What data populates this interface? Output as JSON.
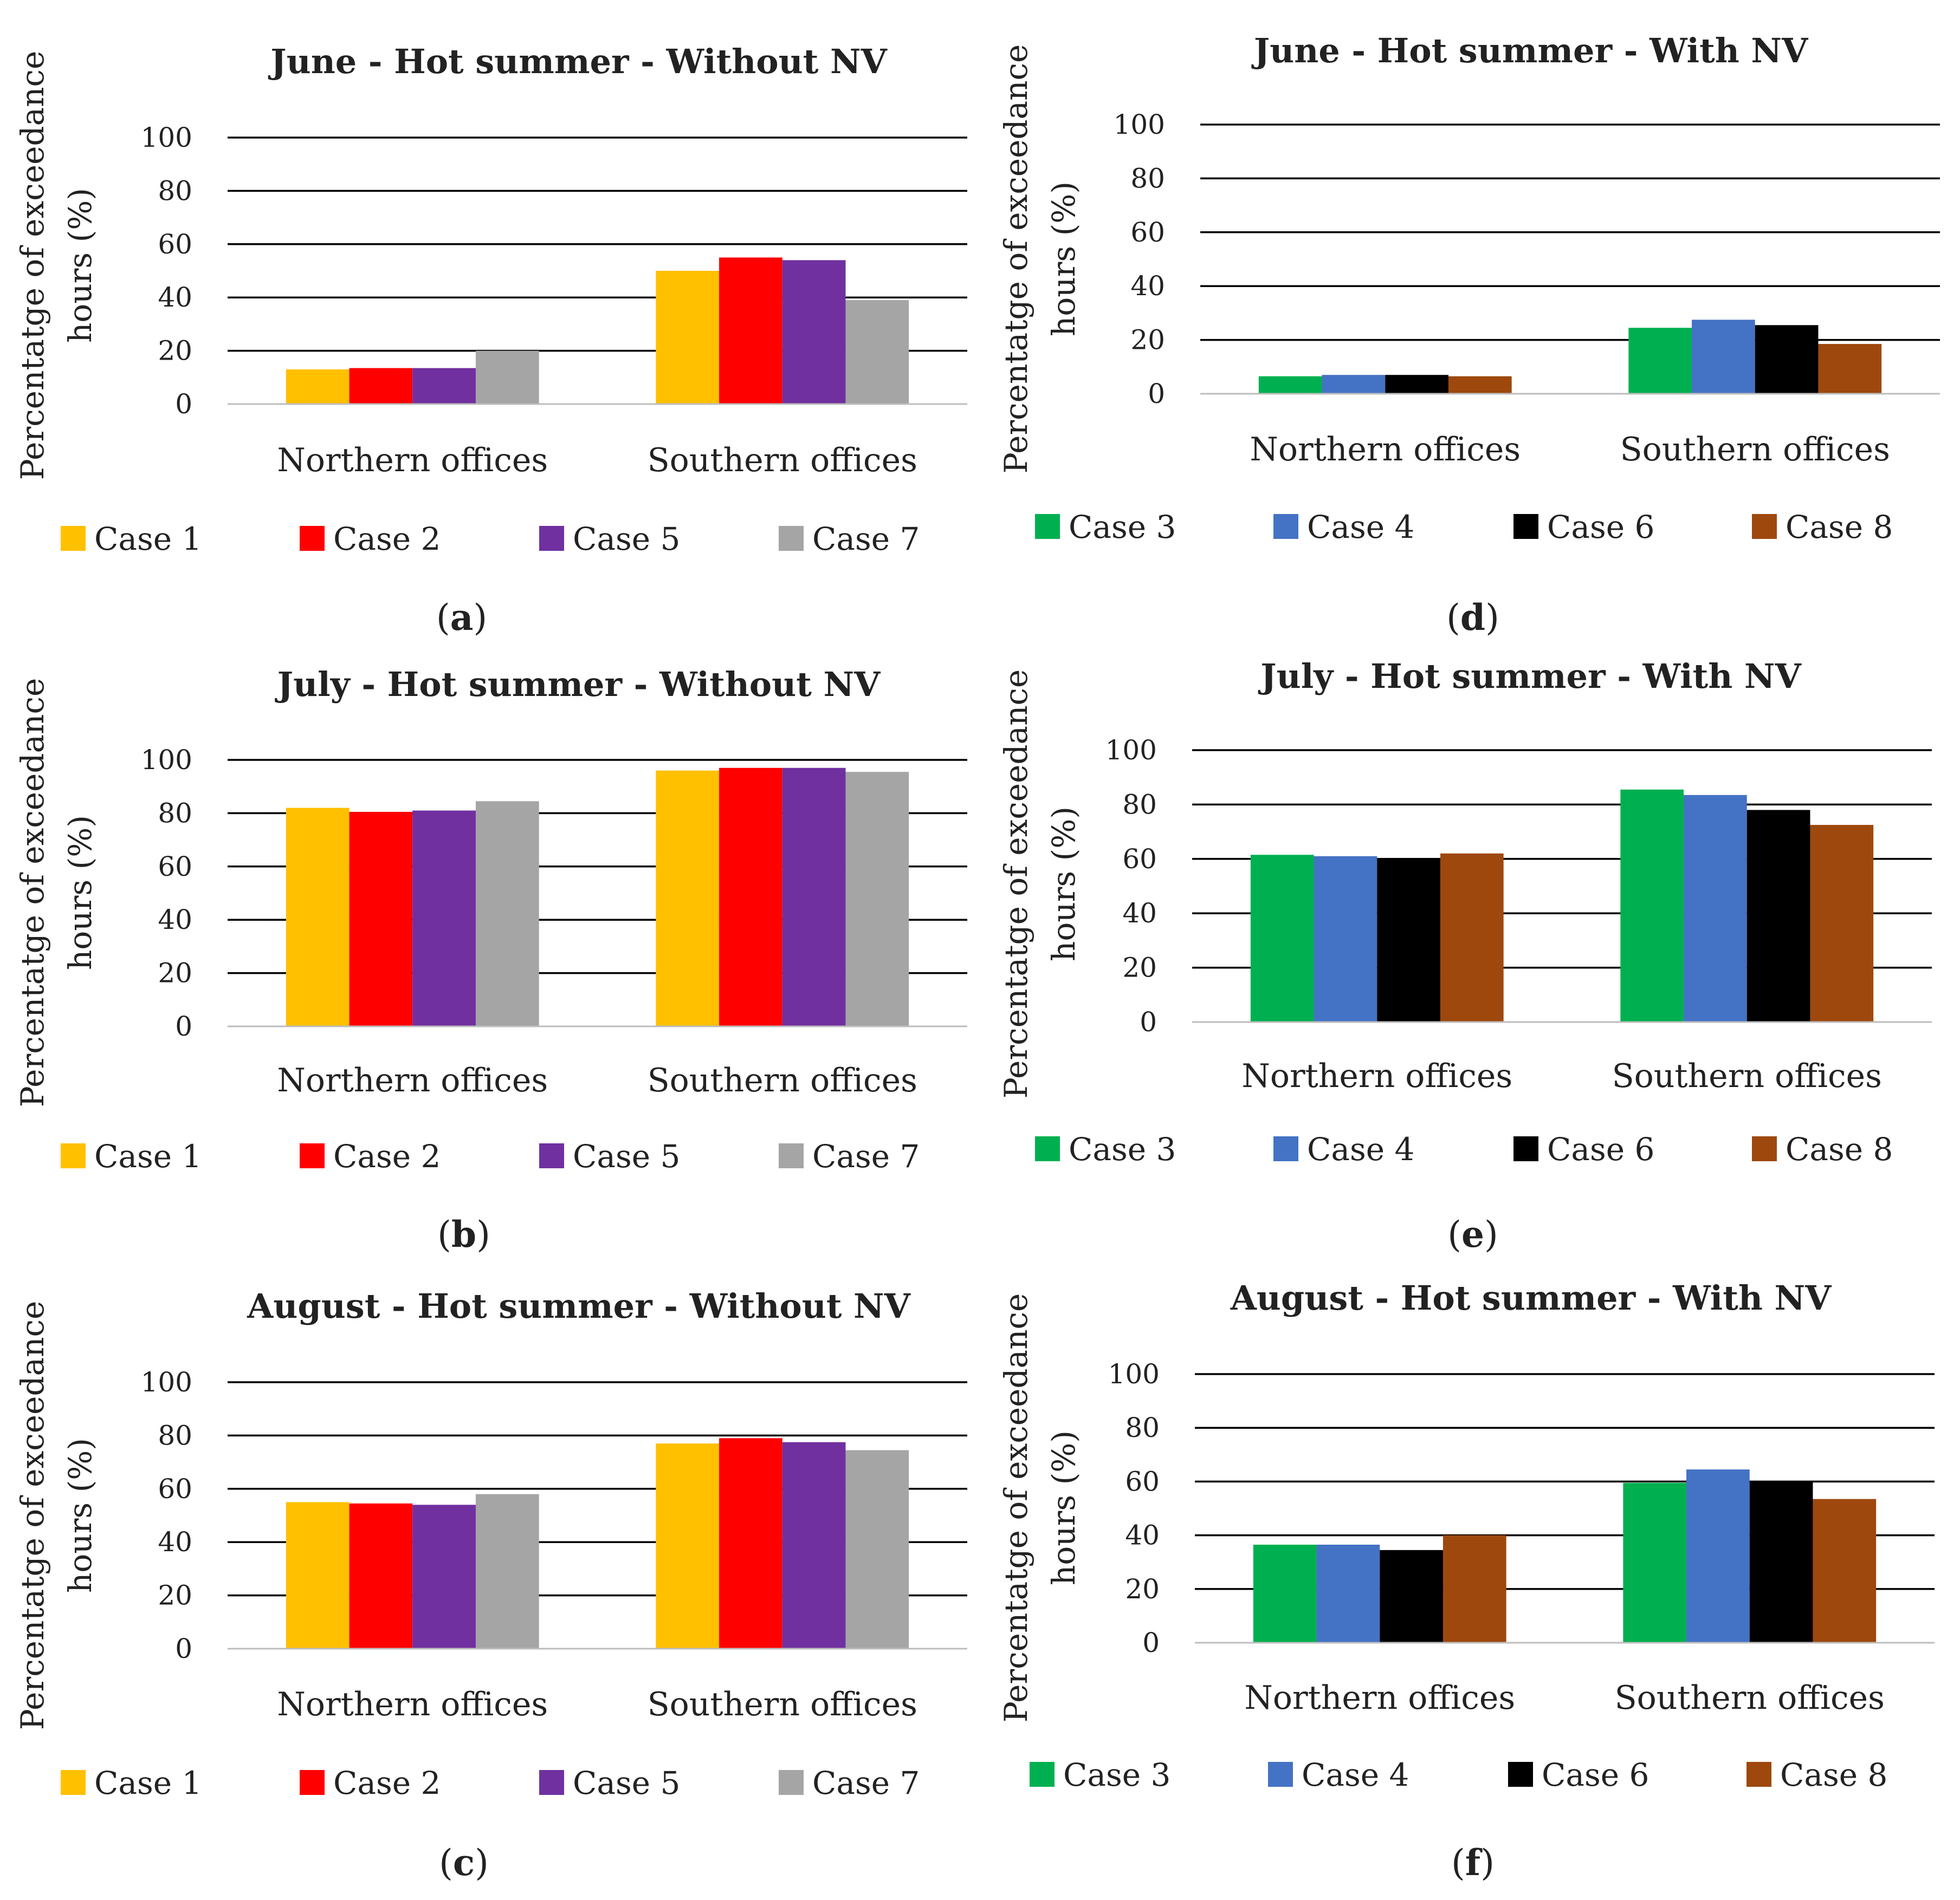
{
  "panel_labels": [
    "(a)",
    "(b)",
    "(c)",
    "(d)",
    "(e)",
    "(f)"
  ],
  "colors": {
    "Case 1": "#FFC000",
    "Case 2": "#FF0000",
    "Case 5": "#7030A0",
    "Case 7": "#A5A5A5",
    "Case 3": "#00B050",
    "Case 4": "#4472C4",
    "Case 6": "#000000",
    "Case 8": "#9E480E"
  },
  "chart_data": [
    {
      "type": "bar",
      "panel": "(a)",
      "title": "June - Hot summer - Without NV",
      "ylabel": "Percentatge of exceedance hours (%)",
      "ylim": [
        0,
        100
      ],
      "yticks": [
        0,
        20,
        40,
        60,
        80,
        100
      ],
      "grid": true,
      "legend": "bottom",
      "categories": [
        "Northern offices",
        "Southern offices"
      ],
      "series": [
        {
          "name": "Case 1",
          "values": [
            13,
            50
          ]
        },
        {
          "name": "Case 2",
          "values": [
            13.5,
            55
          ]
        },
        {
          "name": "Case 5",
          "values": [
            13.5,
            54
          ]
        },
        {
          "name": "Case 7",
          "values": [
            20,
            39
          ]
        }
      ]
    },
    {
      "type": "bar",
      "panel": "(b)",
      "title": "July - Hot summer - Without NV",
      "ylabel": "Percentatge of exceedance hours (%)",
      "ylim": [
        0,
        100
      ],
      "yticks": [
        0,
        20,
        40,
        60,
        80,
        100
      ],
      "grid": true,
      "legend": "bottom",
      "categories": [
        "Northern offices",
        "Southern offices"
      ],
      "series": [
        {
          "name": "Case 1",
          "values": [
            82,
            96
          ]
        },
        {
          "name": "Case 2",
          "values": [
            80.5,
            97
          ]
        },
        {
          "name": "Case 5",
          "values": [
            81,
            97
          ]
        },
        {
          "name": "Case 7",
          "values": [
            84.5,
            95.5
          ]
        }
      ]
    },
    {
      "type": "bar",
      "panel": "(c)",
      "title": "August - Hot summer - Without NV",
      "ylabel": "Percentatge of exceedance hours (%)",
      "ylim": [
        0,
        100
      ],
      "yticks": [
        0,
        20,
        40,
        60,
        80,
        100
      ],
      "grid": true,
      "legend": "bottom",
      "categories": [
        "Northern offices",
        "Southern offices"
      ],
      "series": [
        {
          "name": "Case 1",
          "values": [
            55,
            77
          ]
        },
        {
          "name": "Case 2",
          "values": [
            54.5,
            79
          ]
        },
        {
          "name": "Case 5",
          "values": [
            54,
            77.5
          ]
        },
        {
          "name": "Case 7",
          "values": [
            58,
            74.5
          ]
        }
      ]
    },
    {
      "type": "bar",
      "panel": "(d)",
      "title": "June - Hot summer - With NV",
      "ylabel": "Percentatge of exceedance hours (%)",
      "ylim": [
        0,
        100
      ],
      "yticks": [
        0,
        20,
        40,
        60,
        80,
        100
      ],
      "grid": true,
      "legend": "bottom",
      "categories": [
        "Northern offices",
        "Southern offices"
      ],
      "series": [
        {
          "name": "Case 3",
          "values": [
            6.5,
            24.5
          ]
        },
        {
          "name": "Case 4",
          "values": [
            7,
            27.5
          ]
        },
        {
          "name": "Case 6",
          "values": [
            7,
            25.5
          ]
        },
        {
          "name": "Case 8",
          "values": [
            6.5,
            18.5
          ]
        }
      ]
    },
    {
      "type": "bar",
      "panel": "(e)",
      "title": "July - Hot summer - With NV",
      "ylabel": "Percentatge of exceedance hours (%)",
      "ylim": [
        0,
        100
      ],
      "yticks": [
        0,
        20,
        40,
        60,
        80,
        100
      ],
      "grid": true,
      "legend": "bottom",
      "categories": [
        "Northern offices",
        "Southern offices"
      ],
      "series": [
        {
          "name": "Case 3",
          "values": [
            61.5,
            85.5
          ]
        },
        {
          "name": "Case 4",
          "values": [
            61,
            83.5
          ]
        },
        {
          "name": "Case 6",
          "values": [
            60,
            78
          ]
        },
        {
          "name": "Case 8",
          "values": [
            62,
            72.5
          ]
        }
      ]
    },
    {
      "type": "bar",
      "panel": "(f)",
      "title": "August - Hot summer - With NV",
      "ylabel": "Percentatge of exceedance hours (%)",
      "ylim": [
        0,
        100
      ],
      "yticks": [
        0,
        20,
        40,
        60,
        80,
        100
      ],
      "grid": true,
      "legend": "bottom",
      "categories": [
        "Northern offices",
        "Southern offices"
      ],
      "series": [
        {
          "name": "Case 3",
          "values": [
            36.5,
            59.5
          ]
        },
        {
          "name": "Case 4",
          "values": [
            36.5,
            64.5
          ]
        },
        {
          "name": "Case 6",
          "values": [
            34.5,
            60
          ]
        },
        {
          "name": "Case 8",
          "values": [
            40,
            53.5
          ]
        }
      ]
    }
  ]
}
